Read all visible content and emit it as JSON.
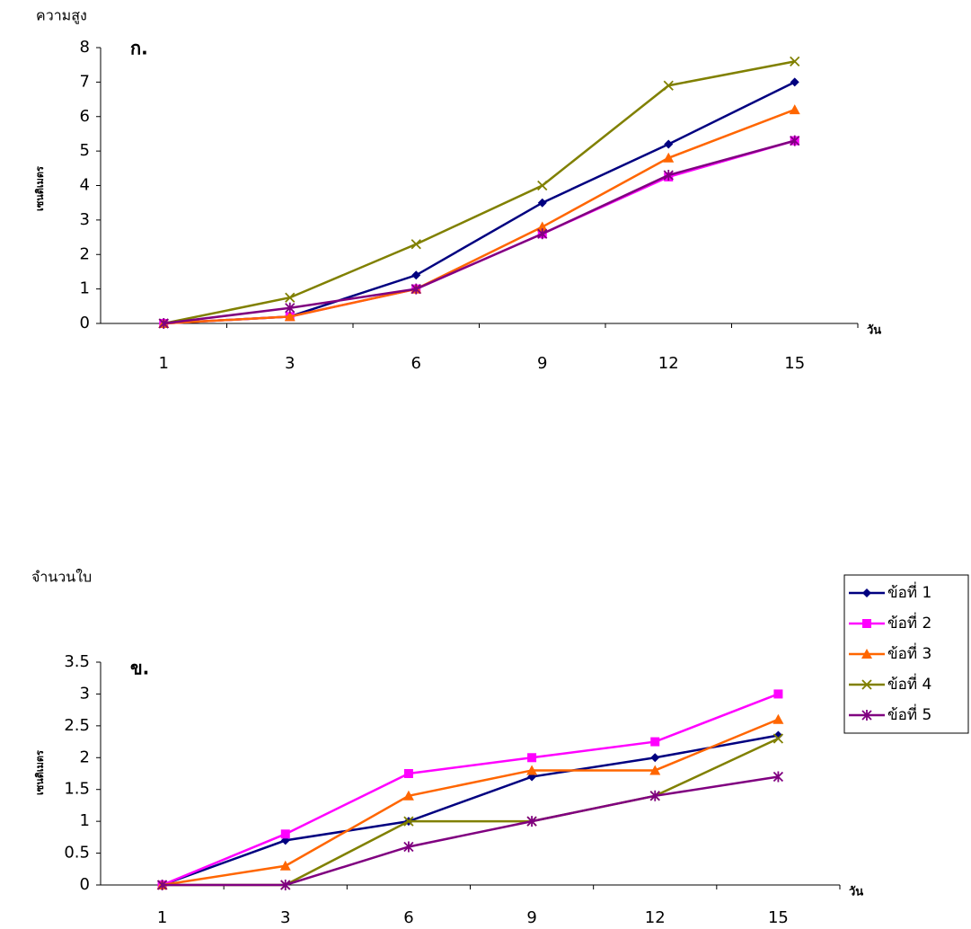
{
  "chart_data": [
    {
      "type": "line",
      "label": "ก.",
      "y_title": "ความสูง",
      "y_axis_label": "เซนติเมตร",
      "x_axis_label": "วัน",
      "categories": [
        "1",
        "3",
        "6",
        "9",
        "12",
        "15"
      ],
      "ylim": [
        0,
        8
      ],
      "yticks": [
        0,
        1,
        2,
        3,
        4,
        5,
        6,
        7,
        8
      ],
      "series": [
        {
          "color": "#000080",
          "marker": "diamond",
          "values": [
            0,
            0.2,
            1.4,
            3.5,
            5.2,
            7.0
          ]
        },
        {
          "color": "#ff00ff",
          "marker": "square",
          "values": [
            0,
            0.2,
            1.0,
            2.6,
            4.25,
            5.3
          ]
        },
        {
          "color": "#ff6600",
          "marker": "triangle",
          "values": [
            0,
            0.2,
            1.0,
            2.8,
            4.8,
            6.2
          ]
        },
        {
          "color": "#808000",
          "marker": "x",
          "values": [
            0,
            0.75,
            2.3,
            4.0,
            6.9,
            7.6
          ]
        },
        {
          "color": "#800080",
          "marker": "star",
          "values": [
            0,
            0.45,
            1.0,
            2.6,
            4.3,
            5.3
          ]
        }
      ]
    },
    {
      "type": "line",
      "label": "ข.",
      "y_title": "จำนวนใบ",
      "y_axis_label": "เซนติเมตร",
      "x_axis_label": "วัน",
      "categories": [
        "1",
        "3",
        "6",
        "9",
        "12",
        "15"
      ],
      "ylim": [
        0,
        3.5
      ],
      "yticks": [
        0,
        0.5,
        1,
        1.5,
        2,
        2.5,
        3,
        3.5
      ],
      "series": [
        {
          "name": "ข้อที่ 1",
          "color": "#000080",
          "marker": "diamond",
          "values": [
            0,
            0.7,
            1.0,
            1.7,
            2.0,
            2.35
          ]
        },
        {
          "name": "ข้อที่ 2",
          "color": "#ff00ff",
          "marker": "square",
          "values": [
            0,
            0.8,
            1.75,
            2.0,
            2.25,
            3.0
          ]
        },
        {
          "name": "ข้อที่ 3",
          "color": "#ff6600",
          "marker": "triangle",
          "values": [
            0,
            0.3,
            1.4,
            1.8,
            1.8,
            2.6
          ]
        },
        {
          "name": "ข้อที่ 4",
          "color": "#808000",
          "marker": "x",
          "values": [
            0,
            0,
            1.0,
            1.0,
            1.4,
            2.3
          ]
        },
        {
          "name": "ข้อที่ 5",
          "color": "#800080",
          "marker": "star",
          "values": [
            0,
            0,
            0.6,
            1.0,
            1.4,
            1.7
          ]
        }
      ]
    }
  ]
}
